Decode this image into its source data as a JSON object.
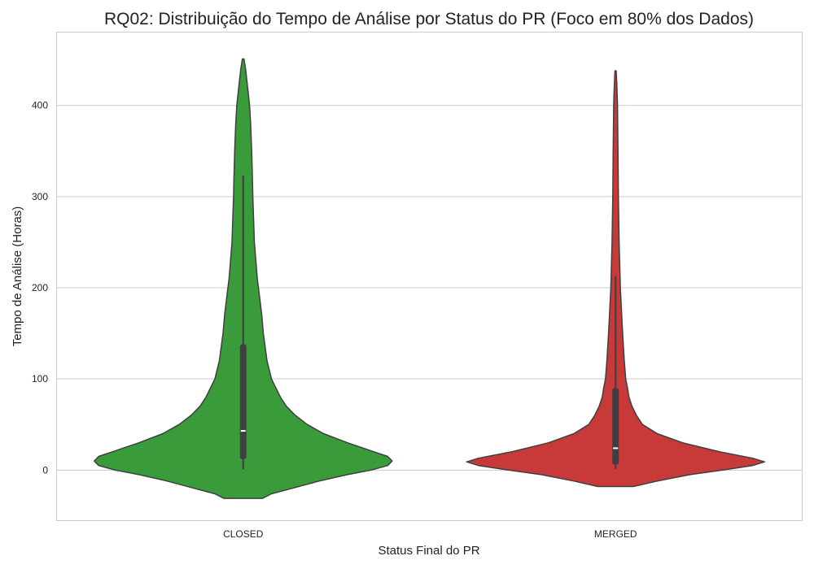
{
  "chart_data": {
    "type": "violin",
    "title": "RQ02: Distribuição do Tempo de Análise por Status do PR (Foco em 80% dos Dados)",
    "xlabel": "Status Final do PR",
    "ylabel": "Tempo de Análise (Horas)",
    "ylim": [
      -55,
      480
    ],
    "yticks": [
      0,
      100,
      200,
      300,
      400
    ],
    "grid": true,
    "categories": [
      "CLOSED",
      "MERGED"
    ],
    "series": [
      {
        "category": "CLOSED",
        "color": "#3a9b3a",
        "stats": {
          "min": 1,
          "q1": 12,
          "median": 43,
          "q3": 138,
          "whisker_high": 323,
          "kde_min": -31,
          "kde_max": 451
        },
        "profile": [
          [
            -31,
            0.13
          ],
          [
            -26,
            0.19
          ],
          [
            -20,
            0.33
          ],
          [
            -12,
            0.51
          ],
          [
            -5,
            0.7
          ],
          [
            0,
            0.86
          ],
          [
            5,
            0.97
          ],
          [
            10,
            1.0
          ],
          [
            15,
            0.97
          ],
          [
            20,
            0.88
          ],
          [
            30,
            0.7
          ],
          [
            40,
            0.54
          ],
          [
            50,
            0.43
          ],
          [
            60,
            0.35
          ],
          [
            70,
            0.29
          ],
          [
            80,
            0.25
          ],
          [
            90,
            0.22
          ],
          [
            100,
            0.19
          ],
          [
            120,
            0.16
          ],
          [
            150,
            0.135
          ],
          [
            170,
            0.125
          ],
          [
            190,
            0.11
          ],
          [
            210,
            0.095
          ],
          [
            250,
            0.075
          ],
          [
            300,
            0.065
          ],
          [
            320,
            0.062
          ],
          [
            350,
            0.057
          ],
          [
            380,
            0.05
          ],
          [
            400,
            0.043
          ],
          [
            420,
            0.03
          ],
          [
            440,
            0.016
          ],
          [
            451,
            0.005
          ]
        ]
      },
      {
        "category": "MERGED",
        "color": "#c83a3a",
        "stats": {
          "min": 1,
          "q1": 6,
          "median": 24,
          "q3": 90,
          "whisker_high": 213,
          "kde_min": -18,
          "kde_max": 438
        },
        "profile": [
          [
            -18,
            0.12
          ],
          [
            -12,
            0.28
          ],
          [
            -5,
            0.5
          ],
          [
            0,
            0.72
          ],
          [
            5,
            0.92
          ],
          [
            9,
            1.0
          ],
          [
            13,
            0.92
          ],
          [
            20,
            0.7
          ],
          [
            30,
            0.45
          ],
          [
            40,
            0.28
          ],
          [
            50,
            0.18
          ],
          [
            60,
            0.14
          ],
          [
            70,
            0.11
          ],
          [
            80,
            0.09
          ],
          [
            90,
            0.08
          ],
          [
            100,
            0.068
          ],
          [
            120,
            0.058
          ],
          [
            150,
            0.047
          ],
          [
            180,
            0.038
          ],
          [
            200,
            0.032
          ],
          [
            250,
            0.024
          ],
          [
            300,
            0.019
          ],
          [
            350,
            0.016
          ],
          [
            400,
            0.013
          ],
          [
            420,
            0.009
          ],
          [
            438,
            0.004
          ]
        ]
      }
    ]
  }
}
